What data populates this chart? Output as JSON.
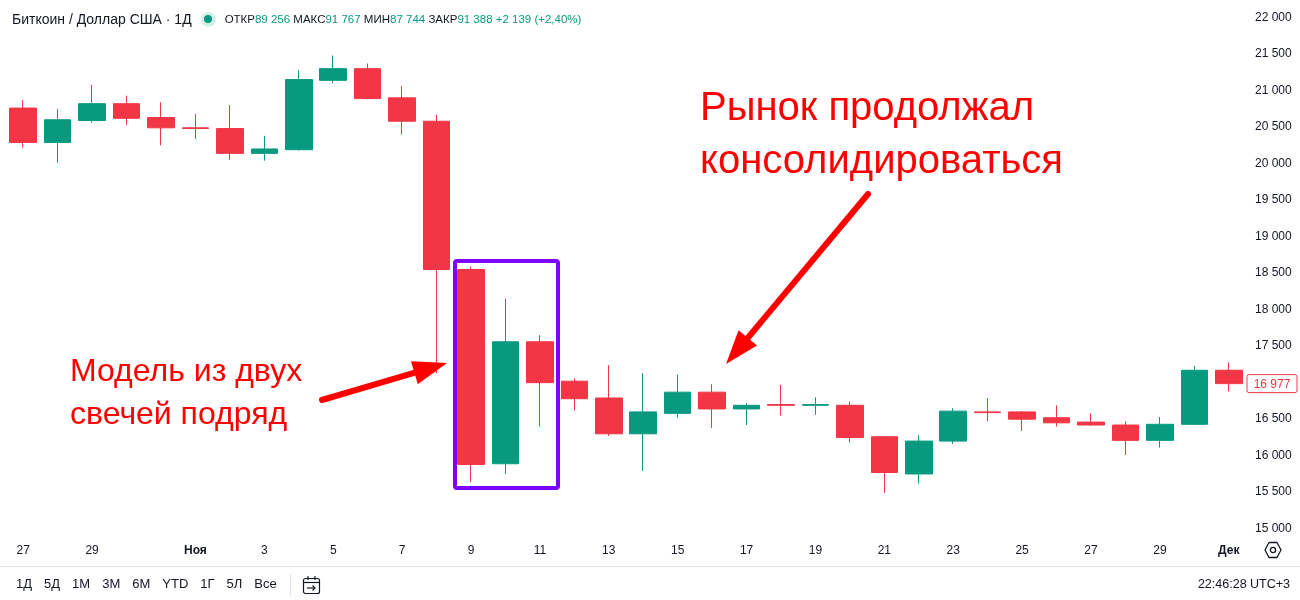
{
  "chart_data": {
    "type": "candlestick",
    "title": "Биткоин / Доллар США · 1Д",
    "subtitle": "ОТКР89 256 МАКС91 767 МИН87 744 ЗАКР91 388 +2 139 (+2,40%)",
    "categories": [
      "27",
      null,
      "29",
      null,
      null,
      "Ноя",
      null,
      "3",
      null,
      "5",
      null,
      "7",
      null,
      "9",
      null,
      "11",
      null,
      "13",
      null,
      "15",
      null,
      "17",
      null,
      "19",
      null,
      "21",
      null,
      "23",
      null,
      "25",
      null,
      "27",
      null,
      "29",
      null,
      "Дек"
    ],
    "ohlc": [
      [
        20750,
        20860,
        20210,
        20280
      ],
      [
        20280,
        20740,
        20000,
        20590
      ],
      [
        20580,
        21070,
        20550,
        20810
      ],
      [
        20810,
        20920,
        20520,
        20610
      ],
      [
        20620,
        20830,
        20240,
        20480
      ],
      [
        20480,
        20670,
        20330,
        20470
      ],
      [
        20470,
        20790,
        20040,
        20130
      ],
      [
        20130,
        20370,
        20030,
        20190
      ],
      [
        20180,
        21270,
        20170,
        21140
      ],
      [
        21130,
        21470,
        21090,
        21290
      ],
      [
        21290,
        21360,
        20870,
        20880
      ],
      [
        20890,
        21050,
        20390,
        20570
      ],
      [
        20570,
        20660,
        17120,
        18540
      ],
      [
        18540,
        18580,
        15630,
        15870
      ],
      [
        15880,
        18140,
        15740,
        17550
      ],
      [
        17550,
        17640,
        16390,
        16990
      ],
      [
        17010,
        17050,
        16610,
        16770
      ],
      [
        16780,
        17230,
        16260,
        16290
      ],
      [
        16290,
        17120,
        15780,
        16590
      ],
      [
        16570,
        17100,
        16510,
        16860
      ],
      [
        16860,
        16970,
        16370,
        16630
      ],
      [
        16630,
        16710,
        16410,
        16680
      ],
      [
        16690,
        16960,
        16540,
        16680
      ],
      [
        16680,
        16790,
        16550,
        16690
      ],
      [
        16680,
        16730,
        16170,
        16240
      ],
      [
        16250,
        16260,
        15480,
        15760
      ],
      [
        15740,
        16270,
        15610,
        16190
      ],
      [
        16190,
        16640,
        16150,
        16600
      ],
      [
        16590,
        16780,
        16460,
        16580
      ],
      [
        16590,
        16600,
        16330,
        16490
      ],
      [
        16510,
        16680,
        16390,
        16440
      ],
      [
        16450,
        16570,
        16400,
        16410
      ],
      [
        16410,
        16460,
        16000,
        16200
      ],
      [
        16200,
        16520,
        16100,
        16420
      ],
      [
        16420,
        17220,
        16410,
        17160
      ],
      [
        17160,
        17270,
        16870,
        16977
      ]
    ],
    "colors": [
      "#f23645",
      "#089981",
      "#089981",
      "#f23645",
      "#f23645",
      "#f23645",
      "#f23645",
      "#089981",
      "#089981",
      "#089981",
      "#f23645",
      "#f23645",
      "#f23645",
      "#f23645",
      "#089981",
      "#f23645",
      "#f23645",
      "#f23645",
      "#089981",
      "#089981",
      "#f23645",
      "#089981",
      "#f23645",
      "#089981",
      "#f23645",
      "#f23645",
      "#089981",
      "#089981",
      "#f23645",
      "#f23645",
      "#f23645",
      "#f23645",
      "#f23645",
      "#089981",
      "#089981",
      "#f23645"
    ],
    "ylim": [
      15000,
      22230
    ],
    "yticks": [
      {
        "value": 15000,
        "label": "15 000"
      },
      {
        "value": 15500,
        "label": "15 500"
      },
      {
        "value": 16000,
        "label": "16 000"
      },
      {
        "value": 16500,
        "label": "16 500"
      },
      {
        "value": 17500,
        "label": "17 500"
      },
      {
        "value": 18000,
        "label": "18 000"
      },
      {
        "value": 18500,
        "label": "18 500"
      },
      {
        "value": 19000,
        "label": "19 000"
      },
      {
        "value": 19500,
        "label": "19 500"
      },
      {
        "value": 20000,
        "label": "20 000"
      },
      {
        "value": 20500,
        "label": "20 500"
      },
      {
        "value": 21000,
        "label": "21 000"
      },
      {
        "value": 21500,
        "label": "21 500"
      },
      {
        "value": 22000,
        "label": "22 000"
      }
    ],
    "annotations": [
      "Модель из двух свечей подряд",
      "Рынок продолжал консолидироваться",
      "16 977",
      "1Д",
      "5Д",
      "1М",
      "3М",
      "6М",
      "YTD",
      "1Г",
      "5Л",
      "Все",
      "22:46:28 UTC+3"
    ]
  }
}
